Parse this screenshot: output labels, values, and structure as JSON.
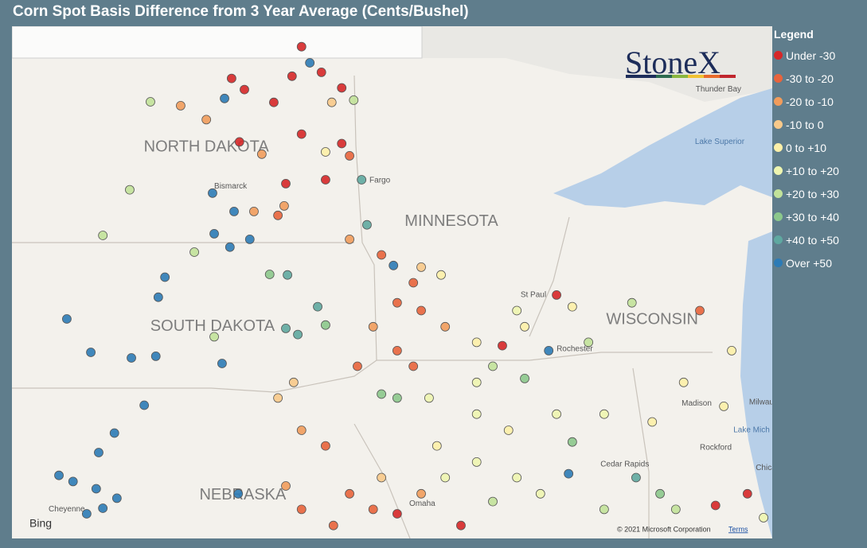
{
  "title": "Corn Spot Basis Difference from 3 Year Average (Cents/Bushel)",
  "logo": "StoneX",
  "provider": "Bing",
  "attribution": {
    "text": "© 2021 Microsoft Corporation",
    "link": "Terms"
  },
  "legend": {
    "title": "Legend",
    "items": [
      {
        "label": "Under -30",
        "color": "#d62728"
      },
      {
        "label": "-30 to -20",
        "color": "#e8643c"
      },
      {
        "label": "-20 to -10",
        "color": "#f19c5c"
      },
      {
        "label": "-10 to 0",
        "color": "#f8c98a"
      },
      {
        "label": "0 to +10",
        "color": "#fdf0a8"
      },
      {
        "label": "+10 to +20",
        "color": "#eef5b0"
      },
      {
        "label": "+20 to +30",
        "color": "#c2e29a"
      },
      {
        "label": "+30 to +40",
        "color": "#8cc88c"
      },
      {
        "label": "+40 to +50",
        "color": "#5fa8a0"
      },
      {
        "label": "Over +50",
        "color": "#2c7bb6"
      }
    ]
  },
  "map": {
    "labels": [
      {
        "text": "NORTH DAKOTA",
        "lon": -100.7,
        "lat": 47.59,
        "kind": "state"
      },
      {
        "text": "SOUTH DAKOTA",
        "lon": -100.55,
        "lat": 44.37,
        "kind": "state"
      },
      {
        "text": "MINNESOTA",
        "lon": -94.78,
        "lat": 46.26,
        "kind": "state"
      },
      {
        "text": "WISCONSIN",
        "lon": -89.93,
        "lat": 44.49,
        "kind": "state"
      },
      {
        "text": "NEBRASKA",
        "lon": -99.82,
        "lat": 41.34,
        "kind": "state"
      },
      {
        "text": "Bismarck",
        "lon": -100.51,
        "lat": 46.89,
        "kind": "city"
      },
      {
        "text": "Fargo",
        "lon": -96.76,
        "lat": 47.0,
        "kind": "city"
      },
      {
        "text": "Thunder Bay",
        "lon": -88.88,
        "lat": 48.63,
        "kind": "city"
      },
      {
        "text": "Lake Superior",
        "lon": -88.3,
        "lat": 47.69,
        "kind": "water"
      },
      {
        "text": "Milwaukee",
        "lon": -87.59,
        "lat": 43.01,
        "kind": "city"
      },
      {
        "text": "Madison",
        "lon": -89.22,
        "lat": 42.99,
        "kind": "city"
      },
      {
        "text": "Lake Mich",
        "lon": -87.53,
        "lat": 42.51,
        "kind": "water"
      },
      {
        "text": "Chicago",
        "lon": -87.43,
        "lat": 41.83,
        "kind": "city"
      },
      {
        "text": "Cedar Rapids",
        "lon": -91.18,
        "lat": 41.9,
        "kind": "city"
      },
      {
        "text": "Rockford",
        "lon": -88.78,
        "lat": 42.2,
        "kind": "city"
      },
      {
        "text": "St Paul",
        "lon": -93.11,
        "lat": 44.94,
        "kind": "city"
      },
      {
        "text": "Rochester",
        "lon": -92.24,
        "lat": 43.97,
        "kind": "city"
      },
      {
        "text": "Omaha",
        "lon": -95.8,
        "lat": 41.19,
        "kind": "city"
      },
      {
        "text": "Cheyenne",
        "lon": -104.51,
        "lat": 41.09,
        "kind": "city"
      }
    ],
    "sites": [
      [
        -98.4,
        49.4,
        0
      ],
      [
        -98.2,
        49.11,
        9
      ],
      [
        -98.63,
        48.87,
        0
      ],
      [
        -97.92,
        48.94,
        0
      ],
      [
        -100.09,
        48.83,
        0
      ],
      [
        -102.05,
        48.41,
        6
      ],
      [
        -101.32,
        48.34,
        2
      ],
      [
        -100.26,
        48.47,
        9
      ],
      [
        -99.07,
        48.4,
        0
      ],
      [
        -99.78,
        48.63,
        0
      ],
      [
        -97.43,
        48.66,
        0
      ],
      [
        -97.14,
        48.44,
        6
      ],
      [
        -97.67,
        48.4,
        3
      ],
      [
        -100.7,
        48.09,
        2
      ],
      [
        -99.9,
        47.69,
        0
      ],
      [
        -99.36,
        47.47,
        2
      ],
      [
        -98.4,
        47.83,
        0
      ],
      [
        -97.43,
        47.66,
        0
      ],
      [
        -97.82,
        47.51,
        4
      ],
      [
        -97.24,
        47.44,
        1
      ],
      [
        -100.55,
        46.77,
        9
      ],
      [
        -100.03,
        46.44,
        9
      ],
      [
        -99.65,
        45.94,
        9
      ],
      [
        -100.51,
        46.04,
        9
      ],
      [
        -100.99,
        45.71,
        6
      ],
      [
        -100.13,
        45.8,
        9
      ],
      [
        -103.2,
        46.01,
        6
      ],
      [
        -102.55,
        46.83,
        6
      ],
      [
        -104.07,
        44.51,
        9
      ],
      [
        -103.49,
        43.91,
        9
      ],
      [
        -101.7,
        45.26,
        9
      ],
      [
        -101.86,
        44.9,
        9
      ],
      [
        -102.51,
        43.81,
        9
      ],
      [
        -101.92,
        43.84,
        9
      ],
      [
        -100.32,
        43.71,
        9
      ],
      [
        -102.2,
        42.96,
        9
      ],
      [
        -102.92,
        42.46,
        9
      ],
      [
        -103.3,
        42.11,
        9
      ],
      [
        -104.26,
        41.7,
        9
      ],
      [
        -103.92,
        41.59,
        9
      ],
      [
        -103.36,
        41.46,
        9
      ],
      [
        -102.86,
        41.29,
        9
      ],
      [
        -103.2,
        41.11,
        9
      ],
      [
        -103.59,
        41.01,
        9
      ],
      [
        -98.78,
        46.94,
        0
      ],
      [
        -97.82,
        47.01,
        0
      ],
      [
        -96.95,
        47.01,
        8
      ],
      [
        -96.82,
        46.2,
        8
      ],
      [
        -96.18,
        45.47,
        9
      ],
      [
        -99.17,
        45.31,
        7
      ],
      [
        -98.74,
        45.3,
        8
      ],
      [
        -98.01,
        44.73,
        8
      ],
      [
        -97.82,
        44.4,
        7
      ],
      [
        -98.78,
        44.34,
        8
      ],
      [
        -98.49,
        44.23,
        8
      ],
      [
        -100.51,
        44.19,
        6
      ],
      [
        -99.55,
        46.44,
        2
      ],
      [
        -98.97,
        46.37,
        1
      ],
      [
        -98.82,
        46.54,
        2
      ],
      [
        -97.24,
        45.94,
        2
      ],
      [
        -96.47,
        45.66,
        1
      ],
      [
        -95.51,
        45.44,
        3
      ],
      [
        -95.03,
        45.3,
        4
      ],
      [
        -95.7,
        45.16,
        1
      ],
      [
        -96.09,
        44.8,
        1
      ],
      [
        -95.51,
        44.66,
        1
      ],
      [
        -94.93,
        44.37,
        2
      ],
      [
        -94.17,
        44.09,
        4
      ],
      [
        -93.55,
        44.03,
        0
      ],
      [
        -96.67,
        44.37,
        2
      ],
      [
        -96.09,
        43.94,
        1
      ],
      [
        -97.05,
        43.66,
        1
      ],
      [
        -95.7,
        43.66,
        1
      ],
      [
        -96.47,
        43.16,
        7
      ],
      [
        -96.09,
        43.09,
        7
      ],
      [
        -95.32,
        43.09,
        5
      ],
      [
        -94.17,
        42.8,
        5
      ],
      [
        -93.4,
        42.51,
        4
      ],
      [
        -92.24,
        42.8,
        5
      ],
      [
        -91.86,
        42.3,
        7
      ],
      [
        -91.09,
        42.8,
        5
      ],
      [
        -89.93,
        42.66,
        4
      ],
      [
        -89.17,
        43.37,
        4
      ],
      [
        -88.2,
        42.94,
        4
      ],
      [
        -92.24,
        44.94,
        0
      ],
      [
        -91.86,
        44.73,
        4
      ],
      [
        -90.42,
        44.8,
        6
      ],
      [
        -88.78,
        44.66,
        1
      ],
      [
        -88.01,
        43.94,
        4
      ],
      [
        -98.59,
        43.37,
        3
      ],
      [
        -98.4,
        42.51,
        2
      ],
      [
        -97.82,
        42.23,
        1
      ],
      [
        -97.24,
        41.37,
        1
      ],
      [
        -97.63,
        40.8,
        1
      ],
      [
        -96.67,
        41.09,
        1
      ],
      [
        -96.09,
        41.01,
        0
      ],
      [
        -94.55,
        40.8,
        0
      ],
      [
        -93.78,
        41.23,
        6
      ],
      [
        -93.2,
        41.66,
        5
      ],
      [
        -91.95,
        41.73,
        9
      ],
      [
        -90.32,
        41.66,
        8
      ],
      [
        -89.74,
        41.37,
        7
      ],
      [
        -89.36,
        41.09,
        6
      ],
      [
        -88.4,
        41.16,
        0
      ],
      [
        -87.63,
        41.37,
        0
      ],
      [
        -87.24,
        40.94,
        5
      ],
      [
        -98.4,
        41.09,
        1
      ],
      [
        -98.78,
        41.51,
        2
      ],
      [
        -99.93,
        41.37,
        9
      ],
      [
        -98.97,
        43.09,
        3
      ],
      [
        -94.17,
        43.37,
        5
      ],
      [
        -93.01,
        43.44,
        7
      ],
      [
        -92.43,
        43.94,
        9
      ],
      [
        -91.47,
        44.09,
        6
      ],
      [
        -93.01,
        44.37,
        4
      ],
      [
        -93.2,
        44.66,
        5
      ],
      [
        -93.78,
        43.66,
        6
      ],
      [
        -94.93,
        41.66,
        5
      ],
      [
        -95.51,
        41.37,
        2
      ],
      [
        -96.47,
        41.66,
        3
      ],
      [
        -95.13,
        42.23,
        4
      ],
      [
        -94.17,
        41.94,
        5
      ],
      [
        -92.63,
        41.37,
        5
      ],
      [
        -91.09,
        41.09,
        6
      ]
    ]
  }
}
